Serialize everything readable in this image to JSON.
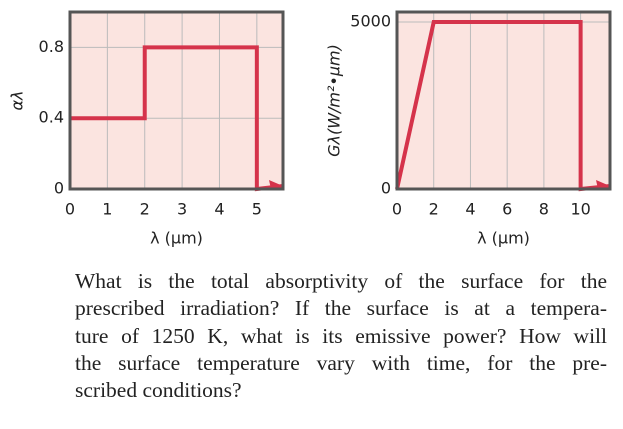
{
  "chart_data": [
    {
      "type": "line",
      "xlabel": "λ (μm)",
      "ylabel": "αλ",
      "x": [
        0,
        2,
        2,
        5,
        5,
        5.7
      ],
      "values": [
        0.4,
        0.4,
        0.8,
        0.8,
        0,
        0
      ],
      "color": "#d5334b",
      "xlim": [
        0,
        5.7
      ],
      "ylim": [
        0,
        1.0
      ],
      "xticks": [
        0,
        1,
        2,
        3,
        4,
        5
      ],
      "yticks": [
        0,
        0.4,
        0.8
      ],
      "grid": true
    },
    {
      "type": "line",
      "xlabel": "λ (μm)",
      "ylabel": "Gλ(W/m²•μm)",
      "x": [
        0,
        2,
        10,
        10,
        11.6
      ],
      "values": [
        0,
        5000,
        5000,
        0,
        0
      ],
      "color": "#d5334b",
      "xlim": [
        0,
        11.6
      ],
      "ylim": [
        0,
        5300
      ],
      "xticks": [
        0,
        2,
        4,
        6,
        8,
        10
      ],
      "yticks": [
        0,
        5000
      ],
      "grid": true
    }
  ],
  "question": {
    "lines": [
      "What is the total absorptivity of the surface for the",
      "prescribed irradiation? If the surface is at a tempera-",
      "ture of 1250 K, what is its emissive power? How will",
      "the surface temperature vary with time, for the pre-",
      "scribed conditions?"
    ]
  }
}
